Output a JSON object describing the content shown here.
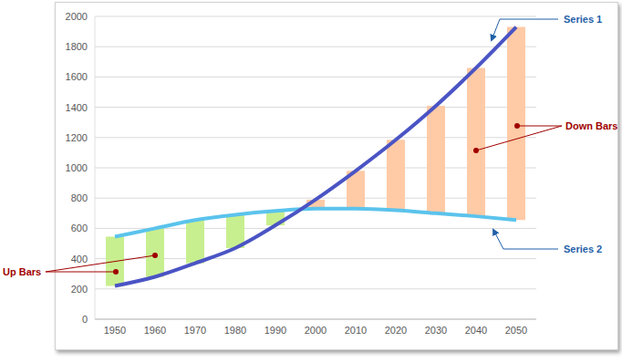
{
  "chart_data": {
    "type": "line",
    "categories": [
      "1950",
      "1960",
      "1970",
      "1980",
      "1990",
      "2000",
      "2010",
      "2020",
      "2030",
      "2040",
      "2050"
    ],
    "series": [
      {
        "name": "Series 1",
        "color": "#4a54c4",
        "values": [
          220,
          280,
          370,
          470,
          620,
          790,
          980,
          1185,
          1410,
          1660,
          1930
        ]
      },
      {
        "name": "Series 2",
        "color": "#5bc3ec",
        "values": [
          545,
          600,
          655,
          690,
          715,
          730,
          730,
          720,
          700,
          680,
          655
        ]
      }
    ],
    "up_down_bars": {
      "colors": [
        "#c8ef8f",
        "#c8ef8f",
        "#c8ef8f",
        "#c8ef8f",
        "#c8ef8f",
        "#ffcaa6",
        "#ffcaa6",
        "#ffcaa6",
        "#ffcaa6",
        "#ffcaa6",
        "#ffcaa6"
      ]
    },
    "annotations": [
      {
        "text": "Up Bars"
      },
      {
        "text": "Down Bars"
      }
    ],
    "ylim": [
      0,
      2000
    ],
    "yticks": [
      0,
      200,
      400,
      600,
      800,
      1000,
      1200,
      1400,
      1600,
      1800,
      2000
    ],
    "grid": true
  }
}
